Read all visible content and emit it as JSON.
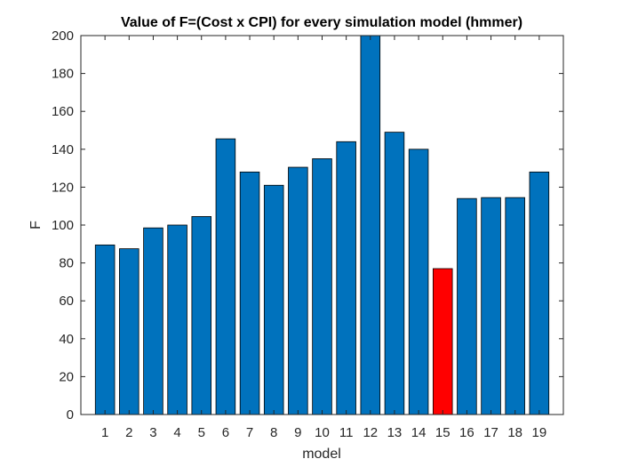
{
  "chart_data": {
    "type": "bar",
    "title": "Value of F=(Cost x CPI) for every simulation model (hmmer)",
    "xlabel": "model",
    "ylabel": "F",
    "categories": [
      "1",
      "2",
      "3",
      "4",
      "5",
      "6",
      "7",
      "8",
      "9",
      "10",
      "11",
      "12",
      "13",
      "14",
      "15",
      "16",
      "17",
      "18",
      "19"
    ],
    "values": [
      89.5,
      87.5,
      98.5,
      100,
      104.5,
      145.5,
      128,
      121,
      130.5,
      135,
      144,
      200,
      149,
      140,
      77,
      114,
      114.5,
      114.5,
      128
    ],
    "ylim": [
      0,
      200
    ],
    "yticks": [
      0,
      20,
      40,
      60,
      80,
      100,
      120,
      140,
      160,
      180,
      200
    ],
    "grid": false,
    "colors": {
      "default_bar": "#0072BD",
      "highlight_bar": "#FF0000",
      "bar_edge": "#000000",
      "axes": "#262626"
    },
    "highlight_index": 14
  }
}
